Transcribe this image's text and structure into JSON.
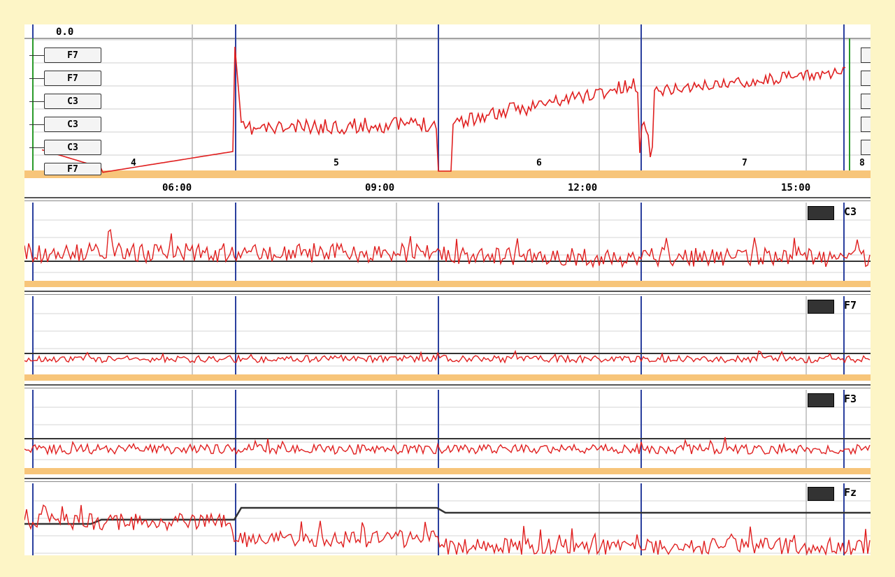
{
  "top_value": "0.0",
  "channel_tags": [
    "F7",
    "F7",
    "C3",
    "C3",
    "C3",
    "F7"
  ],
  "time_ticks": [
    "06:00",
    "09:00",
    "12:00",
    "15:00"
  ],
  "page_numbers": [
    "4",
    "5",
    "6",
    "7",
    "8"
  ],
  "traces": [
    {
      "label": "C3"
    },
    {
      "label": "F7"
    },
    {
      "label": "F3"
    },
    {
      "label": "Fz"
    }
  ],
  "colors": {
    "background": "#fdf5c6",
    "signal": "#e02020",
    "reference": "#333333",
    "page_marker": "#2a3f9e",
    "page_bar": "#f7c57a",
    "grid": "#b8b8b8"
  }
}
